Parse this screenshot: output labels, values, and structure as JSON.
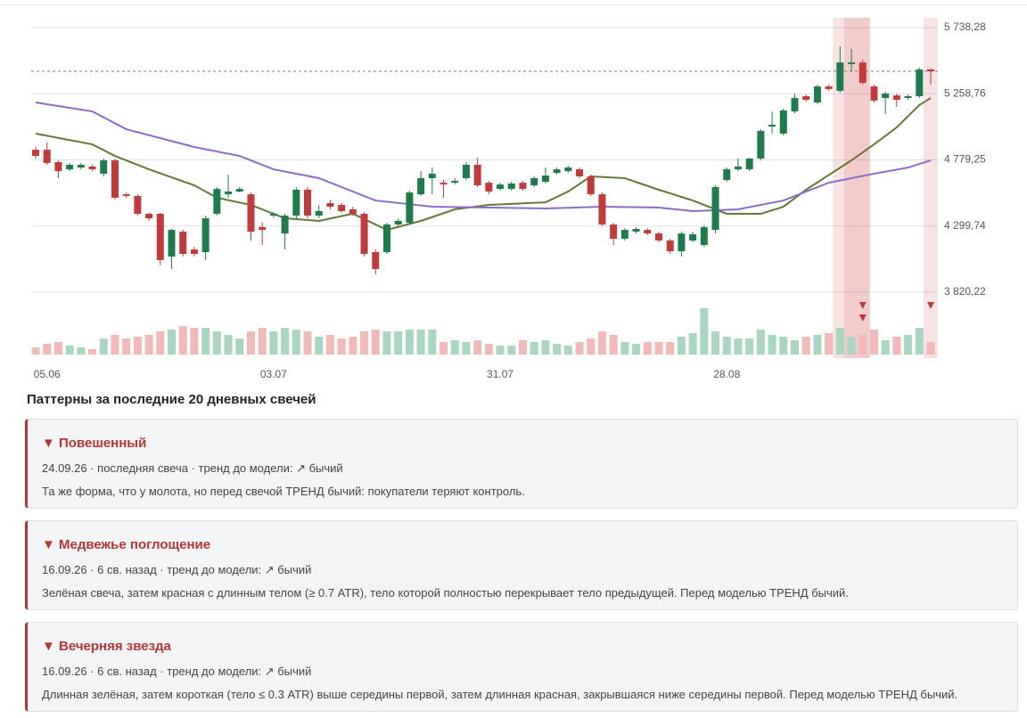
{
  "chart_data": {
    "type": "candlestick",
    "categories": [
      null,
      "05.06",
      null,
      null,
      null,
      null,
      null,
      null,
      null,
      null,
      null,
      null,
      null,
      null,
      null,
      null,
      null,
      null,
      null,
      null,
      null,
      "03.07",
      null,
      null,
      null,
      null,
      null,
      null,
      null,
      null,
      null,
      null,
      null,
      null,
      null,
      null,
      null,
      null,
      null,
      null,
      null,
      "31.07",
      null,
      null,
      null,
      null,
      null,
      null,
      null,
      null,
      null,
      null,
      null,
      null,
      null,
      null,
      null,
      null,
      null,
      null,
      null,
      "28.08",
      null,
      null,
      null,
      null,
      null,
      null,
      null,
      null,
      null,
      null,
      null,
      null,
      null,
      null,
      null,
      null,
      null,
      null
    ],
    "open": [
      4853,
      4853,
      4763,
      4711,
      4724,
      4731,
      4679,
      4776,
      4530,
      4518,
      4389,
      4389,
      4078,
      4259,
      4130,
      4111,
      4389,
      4530,
      4550,
      4530,
      4292,
      4376,
      4246,
      4376,
      4563,
      4376,
      4466,
      4453,
      4421,
      4389,
      4111,
      4111,
      4311,
      4324,
      4530,
      4647,
      4614,
      4614,
      4647,
      4744,
      4614,
      4569,
      4569,
      4614,
      4595,
      4621,
      4685,
      4698,
      4711,
      4660,
      4530,
      4311,
      4208,
      4259,
      4272,
      4246,
      4195,
      4117,
      4195,
      4162,
      4272,
      4634,
      4711,
      4711,
      4789,
      5021,
      4970,
      5131,
      5241,
      5196,
      5312,
      5280,
      5474,
      5486,
      5312,
      5228,
      5247,
      5228,
      5241,
      5435
    ],
    "high": [
      4873,
      4905,
      4776,
      4757,
      4757,
      4744,
      4789,
      4789,
      4543,
      4530,
      4395,
      4395,
      4279,
      4272,
      4150,
      4376,
      4582,
      4673,
      4582,
      4543,
      4324,
      4400,
      4389,
      4582,
      4582,
      4453,
      4490,
      4466,
      4440,
      4400,
      4130,
      4324,
      4356,
      4556,
      4698,
      4724,
      4634,
      4647,
      4763,
      4795,
      4627,
      4614,
      4621,
      4627,
      4660,
      4724,
      4724,
      4737,
      4724,
      4673,
      4543,
      4324,
      4285,
      4292,
      4285,
      4259,
      4208,
      4259,
      4259,
      4305,
      4595,
      4724,
      4789,
      4795,
      5002,
      5131,
      5151,
      5260,
      5254,
      5325,
      5325,
      5603,
      5583,
      5506,
      5325,
      5273,
      5260,
      5254,
      5448,
      5441
    ],
    "low": [
      4789,
      4744,
      4647,
      4698,
      4711,
      4698,
      4660,
      4490,
      4505,
      4376,
      4337,
      4014,
      3988,
      4078,
      4078,
      4053,
      4376,
      4505,
      4543,
      4195,
      4162,
      4360,
      4130,
      4356,
      4356,
      4356,
      4421,
      4395,
      4376,
      4078,
      3949,
      4098,
      4292,
      4311,
      4518,
      4530,
      4505,
      4601,
      4634,
      4582,
      4530,
      4556,
      4556,
      4556,
      4582,
      4608,
      4673,
      4685,
      4647,
      4518,
      4298,
      4162,
      4195,
      4246,
      4233,
      4182,
      4098,
      4078,
      4182,
      4150,
      4246,
      4621,
      4698,
      4698,
      4776,
      4970,
      4957,
      5118,
      5202,
      5183,
      5280,
      5267,
      5422,
      5325,
      5196,
      5112,
      5164,
      5215,
      5228,
      5325
    ],
    "close": [
      4808,
      4757,
      4698,
      4744,
      4744,
      4711,
      4776,
      4505,
      4518,
      4389,
      4356,
      4053,
      4272,
      4098,
      4098,
      4356,
      4569,
      4550,
      4569,
      4259,
      4272,
      4389,
      4376,
      4563,
      4376,
      4408,
      4440,
      4408,
      4389,
      4098,
      3988,
      4311,
      4337,
      4543,
      4647,
      4679,
      4601,
      4627,
      4744,
      4595,
      4550,
      4601,
      4608,
      4569,
      4647,
      4666,
      4711,
      4724,
      4660,
      4530,
      4311,
      4208,
      4272,
      4279,
      4246,
      4195,
      4117,
      4246,
      4240,
      4292,
      4582,
      4711,
      4731,
      4789,
      4989,
      5034,
      5138,
      5228,
      5215,
      5312,
      5293,
      5486,
      5486,
      5338,
      5209,
      5260,
      5215,
      5241,
      5435,
      5422
    ],
    "volume": [
      8,
      12,
      14,
      10,
      8,
      6,
      18,
      22,
      18,
      20,
      22,
      26,
      28,
      32,
      30,
      30,
      26,
      22,
      18,
      26,
      30,
      26,
      30,
      28,
      26,
      20,
      22,
      18,
      20,
      26,
      28,
      26,
      26,
      28,
      28,
      28,
      14,
      16,
      14,
      16,
      12,
      10,
      10,
      16,
      14,
      16,
      12,
      10,
      14,
      18,
      26,
      22,
      14,
      12,
      14,
      14,
      14,
      20,
      24,
      52,
      26,
      20,
      18,
      18,
      28,
      22,
      20,
      16,
      20,
      22,
      24,
      30,
      20,
      22,
      28,
      16,
      20,
      22,
      30,
      14
    ],
    "colors": {
      "up": "#1c7c4c",
      "down": "#c23b3b",
      "up_volume": "#a9d6c1",
      "down_volume": "#f3b9b9"
    },
    "moving_averages": [
      {
        "color": "#637a35",
        "x": [
          0,
          5,
          7,
          10,
          14,
          16,
          19,
          22,
          25,
          28,
          31,
          34,
          37,
          40,
          45,
          47,
          49,
          52,
          55,
          58,
          61,
          64,
          66,
          68,
          72,
          74,
          76,
          78,
          79
        ],
        "values": [
          4970,
          4892,
          4808,
          4711,
          4595,
          4505,
          4453,
          4356,
          4337,
          4389,
          4272,
          4337,
          4421,
          4453,
          4472,
          4550,
          4660,
          4647,
          4563,
          4485,
          4389,
          4389,
          4440,
          4563,
          4776,
          4892,
          5015,
          5177,
          5228
        ]
      },
      {
        "color": "#8a6cc7",
        "x": [
          0,
          5,
          8,
          14,
          18,
          21,
          25,
          30,
          35,
          40,
          45,
          50,
          55,
          58,
          62,
          66,
          70,
          74,
          77,
          79
        ],
        "values": [
          5196,
          5131,
          5002,
          4873,
          4808,
          4711,
          4647,
          4485,
          4440,
          4434,
          4427,
          4440,
          4434,
          4408,
          4421,
          4485,
          4614,
          4679,
          4724,
          4776
        ]
      }
    ],
    "ylim": [
      3742.8,
      5809.5
    ],
    "yticks": [
      {
        "value": 5738.28,
        "label": "5 738,28"
      },
      {
        "value": 5258.76,
        "label": "5 258,76"
      },
      {
        "value": 4779.25,
        "label": "4 779,25"
      },
      {
        "value": 4299.74,
        "label": "4 299,74"
      },
      {
        "value": 3820.22,
        "label": "3 820,22"
      }
    ],
    "grid": true,
    "highlight_color": "#d64f4f"
  },
  "patterns": {
    "heading": "Паттерны за последние 20 дневных свечей",
    "items": [
      {
        "title": "▼ Повешенный",
        "meta": "24.09.26 · последняя свеча · тренд до модели: ↗ бычий",
        "description": "Та же форма, что у молота, но перед свечой ТРЕНД бычий: покупатели теряют контроль.",
        "span": [
          79,
          79
        ]
      },
      {
        "title": "▼ Медвежье поглощение",
        "meta": "16.09.26 · 6 св. назад · тренд до модели: ↗ бычий",
        "description": "Зелёная свеча, затем красная с длинным телом (≥ 0.7 ATR), тело которой полностью перекрывает тело предыдущей. Перед моделью ТРЕНД бычий.",
        "span": [
          72,
          73
        ]
      },
      {
        "title": "▼ Вечерняя звезда",
        "meta": "16.09.26 · 6 св. назад · тренд до модели: ↗ бычий",
        "description": "Длинная зелёная, затем короткая (тело ≤ 0.3 ATR) выше середины первой, затем длинная красная, закрывшаяся ниже середины первой. Перед моделью ТРЕНД бычий.",
        "span": [
          71,
          73
        ]
      }
    ]
  }
}
